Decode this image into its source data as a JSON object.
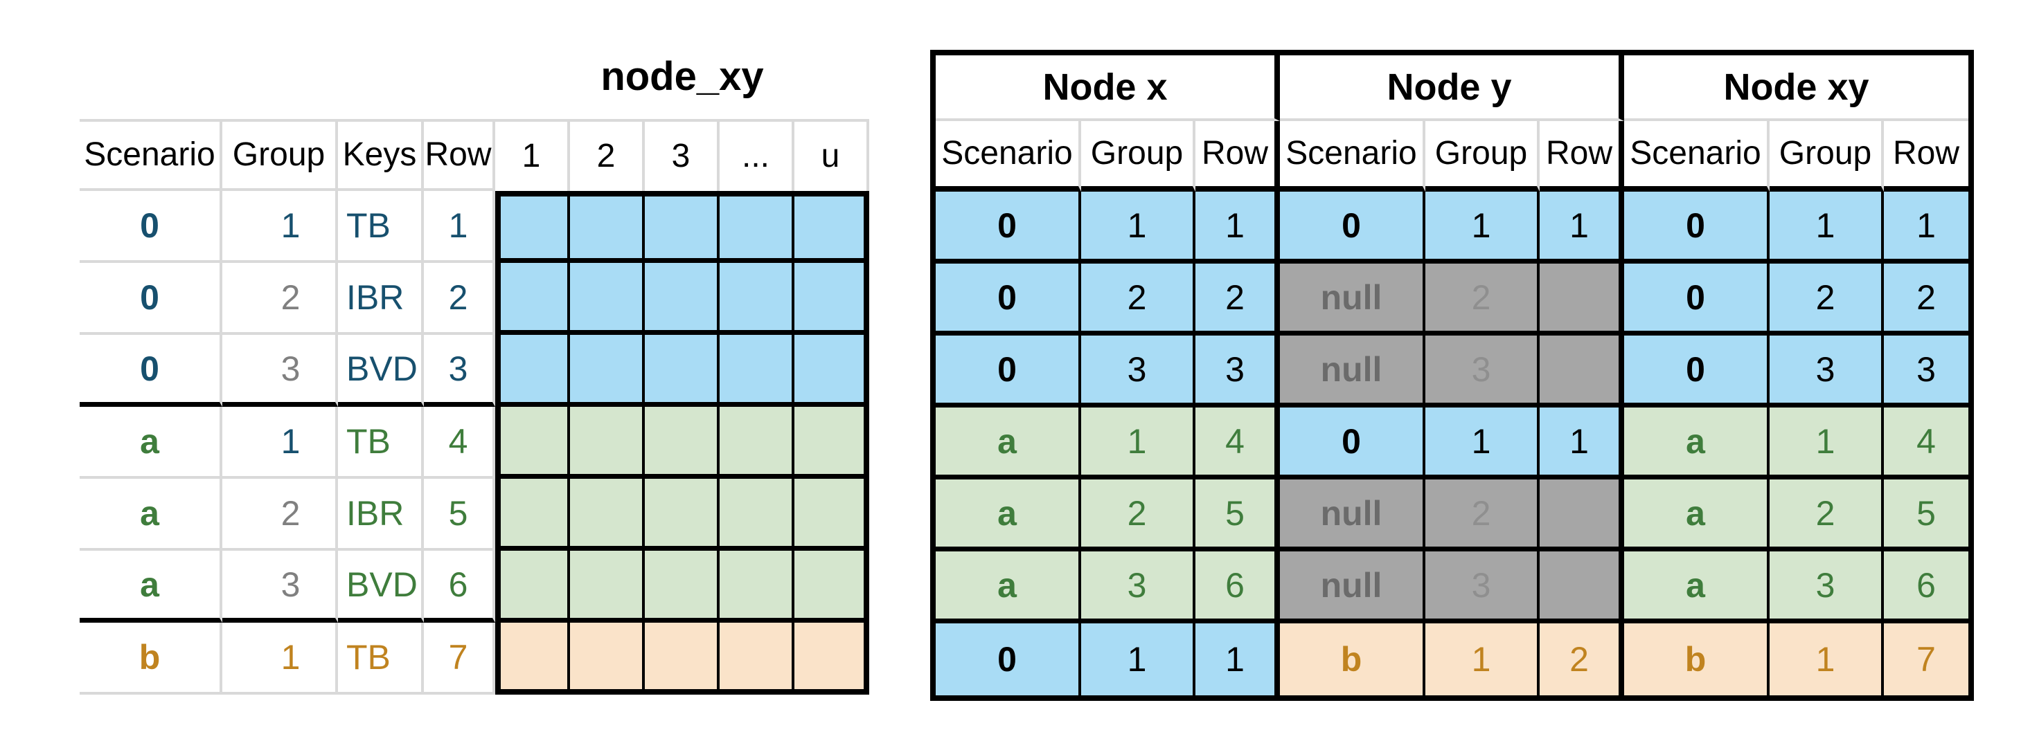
{
  "left_table": {
    "title": "node_xy",
    "headers": [
      "Scenario",
      "Group",
      "Keys",
      "Row"
    ],
    "matrix_headers": [
      "1",
      "2",
      "3",
      "...",
      "u"
    ],
    "rows": [
      {
        "scenario": "0",
        "group": "1",
        "keys": "TB",
        "row": "1",
        "fill": "blue",
        "tone": "navy",
        "group_tone": "navy"
      },
      {
        "scenario": "0",
        "group": "2",
        "keys": "IBR",
        "row": "2",
        "fill": "blue",
        "tone": "navy",
        "group_tone": "gray"
      },
      {
        "scenario": "0",
        "group": "3",
        "keys": "BVD",
        "row": "3",
        "fill": "blue",
        "tone": "navy",
        "group_tone": "gray"
      },
      {
        "scenario": "a",
        "group": "1",
        "keys": "TB",
        "row": "4",
        "fill": "green",
        "tone": "green",
        "group_tone": "navy"
      },
      {
        "scenario": "a",
        "group": "2",
        "keys": "IBR",
        "row": "5",
        "fill": "green",
        "tone": "green",
        "group_tone": "gray"
      },
      {
        "scenario": "a",
        "group": "3",
        "keys": "BVD",
        "row": "6",
        "fill": "green",
        "tone": "green",
        "group_tone": "gray"
      },
      {
        "scenario": "b",
        "group": "1",
        "keys": "TB",
        "row": "7",
        "fill": "orange",
        "tone": "orange",
        "group_tone": "orange"
      }
    ]
  },
  "right_table": {
    "sections": [
      {
        "id": "node-x",
        "title": "Node x",
        "headers": [
          "Scenario",
          "Group",
          "Row"
        ],
        "rows": [
          {
            "scenario": "0",
            "group": "1",
            "row": "1",
            "tone": "blue"
          },
          {
            "scenario": "0",
            "group": "2",
            "row": "2",
            "tone": "blue"
          },
          {
            "scenario": "0",
            "group": "3",
            "row": "3",
            "tone": "blue"
          },
          {
            "scenario": "a",
            "group": "1",
            "row": "4",
            "tone": "green"
          },
          {
            "scenario": "a",
            "group": "2",
            "row": "5",
            "tone": "green"
          },
          {
            "scenario": "a",
            "group": "3",
            "row": "6",
            "tone": "green"
          },
          {
            "scenario": "0",
            "group": "1",
            "row": "1",
            "tone": "blue"
          }
        ]
      },
      {
        "id": "node-y",
        "title": "Node y",
        "headers": [
          "Scenario",
          "Group",
          "Row"
        ],
        "rows": [
          {
            "scenario": "0",
            "group": "1",
            "row": "1",
            "tone": "blue"
          },
          {
            "scenario": "null",
            "group": "2",
            "row": "",
            "tone": "null"
          },
          {
            "scenario": "null",
            "group": "3",
            "row": "",
            "tone": "null"
          },
          {
            "scenario": "0",
            "group": "1",
            "row": "1",
            "tone": "blue"
          },
          {
            "scenario": "null",
            "group": "2",
            "row": "",
            "tone": "null"
          },
          {
            "scenario": "null",
            "group": "3",
            "row": "",
            "tone": "null"
          },
          {
            "scenario": "b",
            "group": "1",
            "row": "2",
            "tone": "orange"
          }
        ]
      },
      {
        "id": "node-xy",
        "title": "Node xy",
        "headers": [
          "Scenario",
          "Group",
          "Row"
        ],
        "rows": [
          {
            "scenario": "0",
            "group": "1",
            "row": "1",
            "tone": "blue"
          },
          {
            "scenario": "0",
            "group": "2",
            "row": "2",
            "tone": "blue"
          },
          {
            "scenario": "0",
            "group": "3",
            "row": "3",
            "tone": "blue"
          },
          {
            "scenario": "a",
            "group": "1",
            "row": "4",
            "tone": "green"
          },
          {
            "scenario": "a",
            "group": "2",
            "row": "5",
            "tone": "green"
          },
          {
            "scenario": "a",
            "group": "3",
            "row": "6",
            "tone": "green"
          },
          {
            "scenario": "b",
            "group": "1",
            "row": "7",
            "tone": "orange"
          }
        ]
      }
    ]
  },
  "palette": {
    "blue_fill": "#a9dcf5",
    "green_fill": "#d5e6ce",
    "orange_fill": "#fae3c9",
    "null_fill": "#a6a6a6",
    "navy_text": "#17506e",
    "green_text": "#3f7d3c",
    "orange_text": "#c0831f",
    "gray_text": "#808080",
    "null_text": "#6b6b6b",
    "grid_gray": "#d9d9d9",
    "border_black": "#000000"
  }
}
